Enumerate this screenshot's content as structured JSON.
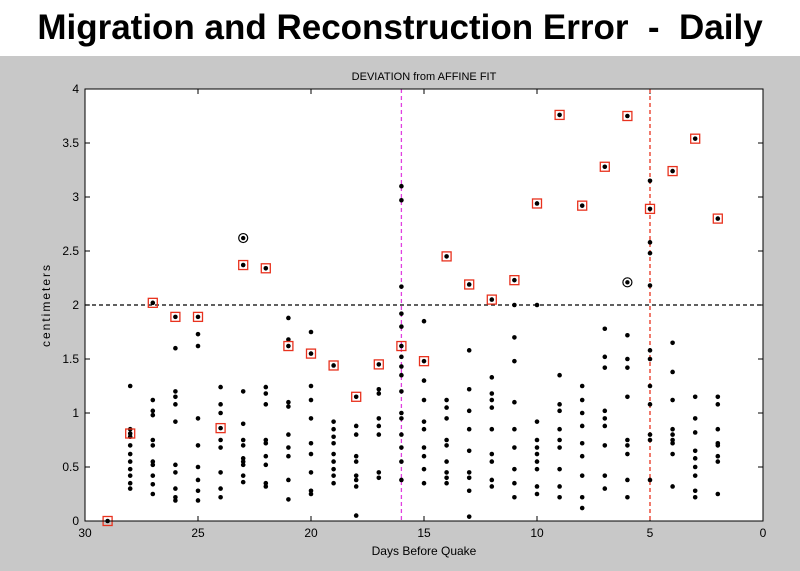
{
  "slide": {
    "title": "Migration and Reconstruction Error  -  Daily"
  },
  "colors": {
    "panel": "#c8c8c8",
    "plot_bg": "#ffffff",
    "marker": "#000000",
    "highlight": "#e8321e",
    "threshold": "#000000",
    "magenta_line": "#e040e0",
    "red_line": "#e8321e"
  },
  "chart_data": {
    "type": "scatter",
    "title": "DEVIATION from AFFINE FIT",
    "xlabel": "Days Before Quake",
    "ylabel": "centimeters",
    "xlim": [
      30,
      0
    ],
    "ylim": [
      0,
      4
    ],
    "x_ticks": [
      30,
      25,
      20,
      15,
      10,
      5,
      0
    ],
    "y_ticks": [
      0,
      0.5,
      1,
      1.5,
      2,
      2.5,
      3,
      3.5,
      4
    ],
    "x_tick_labels": [
      "30",
      "25",
      "20",
      "15",
      "10",
      "5",
      "0"
    ],
    "y_tick_labels": [
      "0",
      "0.5",
      "1",
      "1.5",
      "2",
      "2.5",
      "3",
      "3.5",
      "4"
    ],
    "threshold_y": 2.0,
    "vertical_lines": [
      {
        "x": 16,
        "color": "#e040e0",
        "style": "dashed"
      },
      {
        "x": 5,
        "color": "#e8321e",
        "style": "dashed"
      }
    ],
    "highlighted_points": [
      {
        "x": 29,
        "y": 0.0
      },
      {
        "x": 28,
        "y": 0.81
      },
      {
        "x": 27,
        "y": 2.02
      },
      {
        "x": 26,
        "y": 1.89
      },
      {
        "x": 25,
        "y": 1.89
      },
      {
        "x": 24,
        "y": 0.86
      },
      {
        "x": 23,
        "y": 2.37
      },
      {
        "x": 22,
        "y": 2.34
      },
      {
        "x": 21,
        "y": 1.62
      },
      {
        "x": 20,
        "y": 1.55
      },
      {
        "x": 19,
        "y": 1.44
      },
      {
        "x": 18,
        "y": 1.15
      },
      {
        "x": 17,
        "y": 1.45
      },
      {
        "x": 16,
        "y": 1.62
      },
      {
        "x": 15,
        "y": 1.48
      },
      {
        "x": 14,
        "y": 2.45
      },
      {
        "x": 13,
        "y": 2.19
      },
      {
        "x": 12,
        "y": 2.05
      },
      {
        "x": 11,
        "y": 2.23
      },
      {
        "x": 10,
        "y": 2.94
      },
      {
        "x": 9,
        "y": 3.76
      },
      {
        "x": 8,
        "y": 2.92
      },
      {
        "x": 7,
        "y": 3.28
      },
      {
        "x": 6,
        "y": 3.75
      },
      {
        "x": 5,
        "y": 2.89
      },
      {
        "x": 4,
        "y": 3.24
      },
      {
        "x": 3,
        "y": 3.54
      },
      {
        "x": 2,
        "y": 2.8
      }
    ],
    "circled_points": [
      {
        "x": 23,
        "y": 2.62
      },
      {
        "x": 6,
        "y": 2.21
      }
    ],
    "points": [
      {
        "x": 28,
        "y": [
          1.25,
          0.85,
          0.78,
          0.7,
          0.62,
          0.55,
          0.48,
          0.42,
          0.35,
          0.3
        ]
      },
      {
        "x": 27,
        "y": [
          1.12,
          1.02,
          0.98,
          0.75,
          0.7,
          0.55,
          0.52,
          0.42,
          0.34,
          0.25
        ]
      },
      {
        "x": 26,
        "y": [
          1.6,
          1.2,
          1.15,
          1.08,
          0.92,
          0.52,
          0.45,
          0.3,
          0.22,
          0.19
        ]
      },
      {
        "x": 25,
        "y": [
          1.73,
          1.62,
          0.95,
          0.7,
          0.5,
          0.38,
          0.28,
          0.19
        ]
      },
      {
        "x": 24,
        "y": [
          1.24,
          1.08,
          1.0,
          0.75,
          0.68,
          0.45,
          0.3,
          0.22
        ]
      },
      {
        "x": 23,
        "y": [
          1.2,
          0.9,
          0.75,
          0.7,
          0.58,
          0.55,
          0.52,
          0.42,
          0.36
        ]
      },
      {
        "x": 22,
        "y": [
          1.24,
          1.18,
          1.08,
          0.75,
          0.72,
          0.6,
          0.52,
          0.35,
          0.32
        ]
      },
      {
        "x": 21,
        "y": [
          1.88,
          1.68,
          1.1,
          1.06,
          0.8,
          0.68,
          0.6,
          0.38,
          0.2
        ]
      },
      {
        "x": 20,
        "y": [
          1.75,
          1.25,
          1.12,
          0.95,
          0.72,
          0.62,
          0.45,
          0.28,
          0.25
        ]
      },
      {
        "x": 19,
        "y": [
          0.92,
          0.85,
          0.78,
          0.72,
          0.62,
          0.55,
          0.48,
          0.42,
          0.35
        ]
      },
      {
        "x": 18,
        "y": [
          0.88,
          0.8,
          0.6,
          0.55,
          0.42,
          0.38,
          0.32,
          0.05
        ]
      },
      {
        "x": 17,
        "y": [
          1.22,
          1.18,
          0.95,
          0.88,
          0.8,
          0.45,
          0.4
        ]
      },
      {
        "x": 16,
        "y": [
          3.1,
          2.97,
          2.17,
          1.92,
          1.8,
          1.52,
          1.43,
          1.35,
          1.2,
          1.0,
          0.95,
          0.8,
          0.68,
          0.55,
          0.38
        ]
      },
      {
        "x": 15,
        "y": [
          1.85,
          1.3,
          1.12,
          0.92,
          0.85,
          0.68,
          0.6,
          0.48,
          0.35
        ]
      },
      {
        "x": 14,
        "y": [
          1.12,
          1.05,
          0.95,
          0.75,
          0.7,
          0.55,
          0.45,
          0.4,
          0.35
        ]
      },
      {
        "x": 13,
        "y": [
          1.58,
          1.22,
          1.02,
          0.85,
          0.65,
          0.45,
          0.4,
          0.28,
          0.04
        ]
      },
      {
        "x": 12,
        "y": [
          1.33,
          1.18,
          1.12,
          1.05,
          0.85,
          0.62,
          0.55,
          0.38,
          0.32
        ]
      },
      {
        "x": 11,
        "y": [
          2.0,
          1.7,
          1.48,
          1.1,
          0.85,
          0.68,
          0.48,
          0.35,
          0.22
        ]
      },
      {
        "x": 10,
        "y": [
          2.0,
          0.92,
          0.75,
          0.68,
          0.62,
          0.55,
          0.48,
          0.32,
          0.25
        ]
      },
      {
        "x": 9,
        "y": [
          1.35,
          1.08,
          1.02,
          0.85,
          0.75,
          0.68,
          0.48,
          0.32,
          0.22
        ]
      },
      {
        "x": 8,
        "y": [
          1.25,
          1.12,
          1.0,
          0.88,
          0.72,
          0.6,
          0.42,
          0.22,
          0.12
        ]
      },
      {
        "x": 7,
        "y": [
          1.78,
          1.52,
          1.42,
          1.02,
          0.95,
          0.88,
          0.7,
          0.42,
          0.3
        ]
      },
      {
        "x": 6,
        "y": [
          1.72,
          1.5,
          1.42,
          1.15,
          0.75,
          0.7,
          0.62,
          0.38,
          0.22
        ]
      },
      {
        "x": 5,
        "y": [
          3.15,
          2.58,
          2.48,
          2.18,
          1.58,
          1.5,
          1.25,
          1.08,
          0.8,
          0.75,
          0.38
        ]
      },
      {
        "x": 4,
        "y": [
          1.65,
          1.38,
          1.12,
          0.85,
          0.8,
          0.75,
          0.72,
          0.62,
          0.32
        ]
      },
      {
        "x": 3,
        "y": [
          1.15,
          0.95,
          0.82,
          0.65,
          0.58,
          0.5,
          0.42,
          0.28,
          0.22
        ]
      },
      {
        "x": 2,
        "y": [
          1.15,
          1.08,
          0.85,
          0.72,
          0.7,
          0.6,
          0.55,
          0.25
        ]
      }
    ]
  }
}
